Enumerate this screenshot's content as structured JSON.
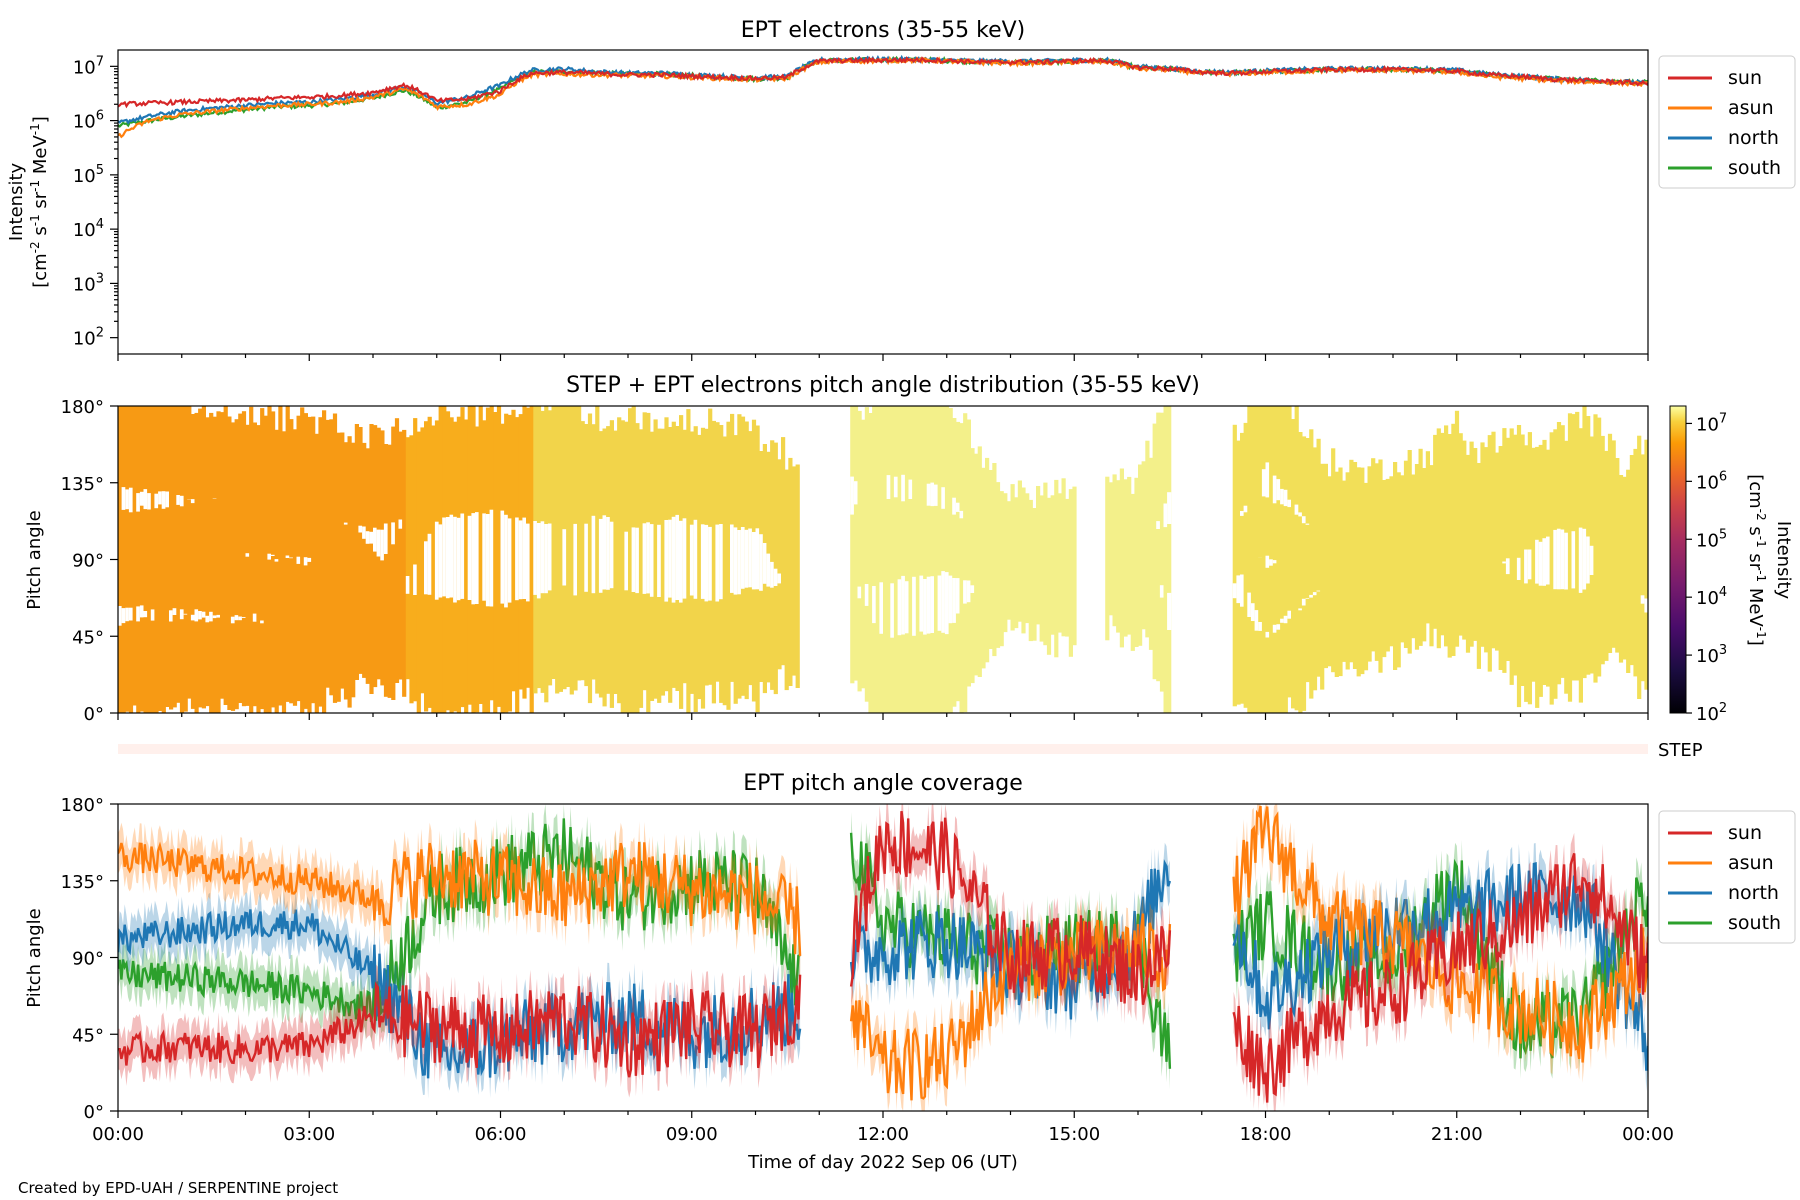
{
  "chart_data": [
    {
      "type": "line",
      "title": "EPT electrons (35-55 keV)",
      "ylabel_line1": "Intensity",
      "ylabel_line2": "[cm",
      "ylabel_units": [
        "-2",
        "-1",
        "-1",
        "-1"
      ],
      "yscale": "log",
      "ylim": [
        50,
        20000000
      ],
      "yticks": [
        "10",
        "10",
        "10",
        "10",
        "10",
        "10"
      ],
      "ytick_exponents": [
        "2",
        "3",
        "4",
        "5",
        "6",
        "7"
      ],
      "ytick_values": [
        100,
        1000,
        10000,
        100000,
        1000000,
        10000000
      ],
      "x_hours": [
        0,
        0.5,
        1,
        1.5,
        2,
        2.5,
        3,
        3.5,
        4,
        4.5,
        5,
        5.5,
        6,
        6.5,
        7,
        7.5,
        8,
        8.5,
        9,
        9.5,
        10,
        10.5,
        11,
        11.5,
        12,
        12.5,
        13,
        13.5,
        14,
        14.5,
        15,
        15.5,
        16,
        16.5,
        17,
        17.5,
        18,
        18.5,
        19,
        19.5,
        20,
        20.5,
        21,
        21.5,
        22,
        22.5,
        23,
        23.5,
        24
      ],
      "series": [
        {
          "name": "sun",
          "color": "#d62728",
          "values": [
            2000000,
            2100000,
            2200000,
            2300000,
            2400000,
            2600000,
            2700000,
            2900000,
            3300000,
            4500000,
            2300000,
            2500000,
            3500000,
            7500000,
            7800000,
            7400000,
            7000000,
            7000000,
            6600000,
            6300000,
            6000000,
            6300000,
            12500000,
            12800000,
            13000000,
            13200000,
            12800000,
            12000000,
            12000000,
            12000000,
            12500000,
            12800000,
            9500000,
            9000000,
            7800000,
            7500000,
            8000000,
            8300000,
            8700000,
            8800000,
            8700000,
            8600000,
            8200000,
            7000000,
            6500000,
            5800000,
            5500000,
            5200000,
            4800000
          ]
        },
        {
          "name": "asun",
          "color": "#ff7f0e",
          "values": [
            500000,
            1000000,
            1300000,
            1500000,
            1700000,
            1900000,
            2000000,
            2200000,
            2700000,
            3800000,
            1800000,
            2000000,
            3000000,
            7000000,
            7200000,
            7000000,
            6800000,
            6700000,
            6300000,
            6000000,
            5700000,
            6000000,
            12000000,
            12500000,
            12700000,
            13000000,
            12500000,
            11800000,
            11500000,
            11500000,
            12000000,
            12200000,
            9000000,
            8700000,
            7500000,
            7300000,
            7700000,
            8000000,
            8500000,
            8600000,
            8500000,
            8200000,
            7800000,
            6500000,
            6000000,
            5500000,
            5200000,
            5000000,
            4700000
          ]
        },
        {
          "name": "north",
          "color": "#1f77b4",
          "values": [
            900000,
            1200000,
            1500000,
            1700000,
            1900000,
            2100000,
            2200000,
            2500000,
            3000000,
            4200000,
            2100000,
            2700000,
            4500000,
            8500000,
            9000000,
            8000000,
            7500000,
            7500000,
            7000000,
            6500000,
            6200000,
            6500000,
            13000000,
            13500000,
            13500000,
            13500000,
            13000000,
            12500000,
            12500000,
            12500000,
            13000000,
            13200000,
            9800000,
            9200000,
            8000000,
            7800000,
            8300000,
            8700000,
            9000000,
            9200000,
            9000000,
            9000000,
            8500000,
            7200000,
            6600000,
            5900000,
            5600000,
            5300000,
            4900000
          ]
        },
        {
          "name": "south",
          "color": "#2ca02c",
          "values": [
            800000,
            1000000,
            1200000,
            1400000,
            1600000,
            1800000,
            1900000,
            2100000,
            2600000,
            3600000,
            1700000,
            2200000,
            3800000,
            7800000,
            8000000,
            7600000,
            7200000,
            7200000,
            6800000,
            6200000,
            5900000,
            6200000,
            12800000,
            13000000,
            13200000,
            13300000,
            12800000,
            12200000,
            12000000,
            12000000,
            12500000,
            12800000,
            9500000,
            9000000,
            7900000,
            7600000,
            8100000,
            8400000,
            8800000,
            8900000,
            8800000,
            8700000,
            8300000,
            7100000,
            6500000,
            5900000,
            5600000,
            5300000,
            5000000
          ]
        }
      ]
    },
    {
      "type": "heatmap",
      "title": "STEP + EPT electrons pitch angle distribution (35-55 keV)",
      "ylabel": "Pitch angle",
      "yticks": [
        "0°",
        "45°",
        "90°",
        "135°",
        "180°"
      ],
      "ylim": [
        0,
        180
      ],
      "colorbar": {
        "label": "Intensity",
        "label_units": "[cm",
        "scale": "log",
        "colormap": "inferno",
        "ticks": [
          "10",
          "10",
          "10",
          "10",
          "10",
          "10"
        ],
        "tick_exponents": [
          "2",
          "3",
          "4",
          "5",
          "6",
          "7"
        ],
        "range": [
          100,
          20000000
        ]
      },
      "data_gaps_hours": [
        [
          10.7,
          11.5
        ],
        [
          15.0,
          15.5
        ],
        [
          16.5,
          17.5
        ]
      ],
      "intensity_by_hour": [
        {
          "t0": 0,
          "t1": 4.5,
          "color": "#f79a14",
          "intensity": 2000000
        },
        {
          "t0": 4.5,
          "t1": 6.5,
          "color": "#f8ad1c",
          "intensity": 3000000
        },
        {
          "t0": 6.5,
          "t1": 10.7,
          "color": "#f2d44a",
          "intensity": 7000000
        },
        {
          "t0": 11.5,
          "t1": 16.5,
          "color": "#f3f08a",
          "intensity": 13000000
        },
        {
          "t0": 17.5,
          "t1": 24,
          "color": "#f2df58",
          "intensity": 8000000
        }
      ],
      "side_label": "STEP"
    },
    {
      "type": "line",
      "title": "EPT pitch angle coverage",
      "ylabel": "Pitch angle",
      "yticks": [
        "0°",
        "45°",
        "90°",
        "135°",
        "180°"
      ],
      "ylim": [
        0,
        180
      ],
      "xlabel": "Time of day 2022 Sep 06 (UT)",
      "xticks": [
        "00:00",
        "03:00",
        "06:00",
        "09:00",
        "12:00",
        "15:00",
        "18:00",
        "21:00",
        "00:00"
      ],
      "xlim_hours": [
        0,
        24
      ],
      "data_gaps_hours": [
        [
          10.7,
          11.5
        ],
        [
          16.5,
          17.5
        ]
      ],
      "x_hours": [
        0,
        1,
        2,
        3,
        4,
        5,
        6,
        7,
        8,
        9,
        10,
        10.7,
        11.5,
        12,
        13,
        14,
        15,
        16,
        16.5,
        17.5,
        18,
        19,
        20,
        21,
        22,
        23,
        24
      ],
      "series": [
        {
          "name": "sun",
          "color": "#d62728",
          "values": [
            35,
            38,
            36,
            38,
            55,
            50,
            45,
            55,
            40,
            50,
            45,
            65,
            95,
            160,
            150,
            90,
            95,
            80,
            95,
            50,
            25,
            60,
            70,
            95,
            110,
            140,
            85
          ]
        },
        {
          "name": "asun",
          "color": "#ff7f0e",
          "values": [
            150,
            145,
            140,
            135,
            125,
            140,
            135,
            125,
            140,
            130,
            125,
            110,
            60,
            25,
            30,
            85,
            90,
            95,
            90,
            125,
            165,
            110,
            100,
            75,
            60,
            50,
            90
          ]
        },
        {
          "name": "north",
          "color": "#1f77b4",
          "values": [
            100,
            105,
            110,
            110,
            80,
            30,
            40,
            50,
            55,
            45,
            55,
            60,
            90,
            95,
            100,
            85,
            75,
            100,
            150,
            110,
            65,
            95,
            110,
            115,
            125,
            125,
            40
          ]
        },
        {
          "name": "south",
          "color": "#2ca02c",
          "values": [
            80,
            78,
            75,
            70,
            60,
            130,
            140,
            150,
            125,
            135,
            130,
            70,
            160,
            110,
            100,
            90,
            95,
            100,
            30,
            95,
            110,
            85,
            90,
            135,
            45,
            55,
            130
          ]
        }
      ]
    }
  ],
  "legend_top": [
    "sun",
    "asun",
    "north",
    "south"
  ],
  "legend_bottom": [
    "sun",
    "asun",
    "north",
    "south"
  ],
  "colors": {
    "sun": "#d62728",
    "asun": "#ff7f0e",
    "north": "#1f77b4",
    "south": "#2ca02c"
  },
  "footer": "Created by EPD-UAH / SERPENTINE project"
}
